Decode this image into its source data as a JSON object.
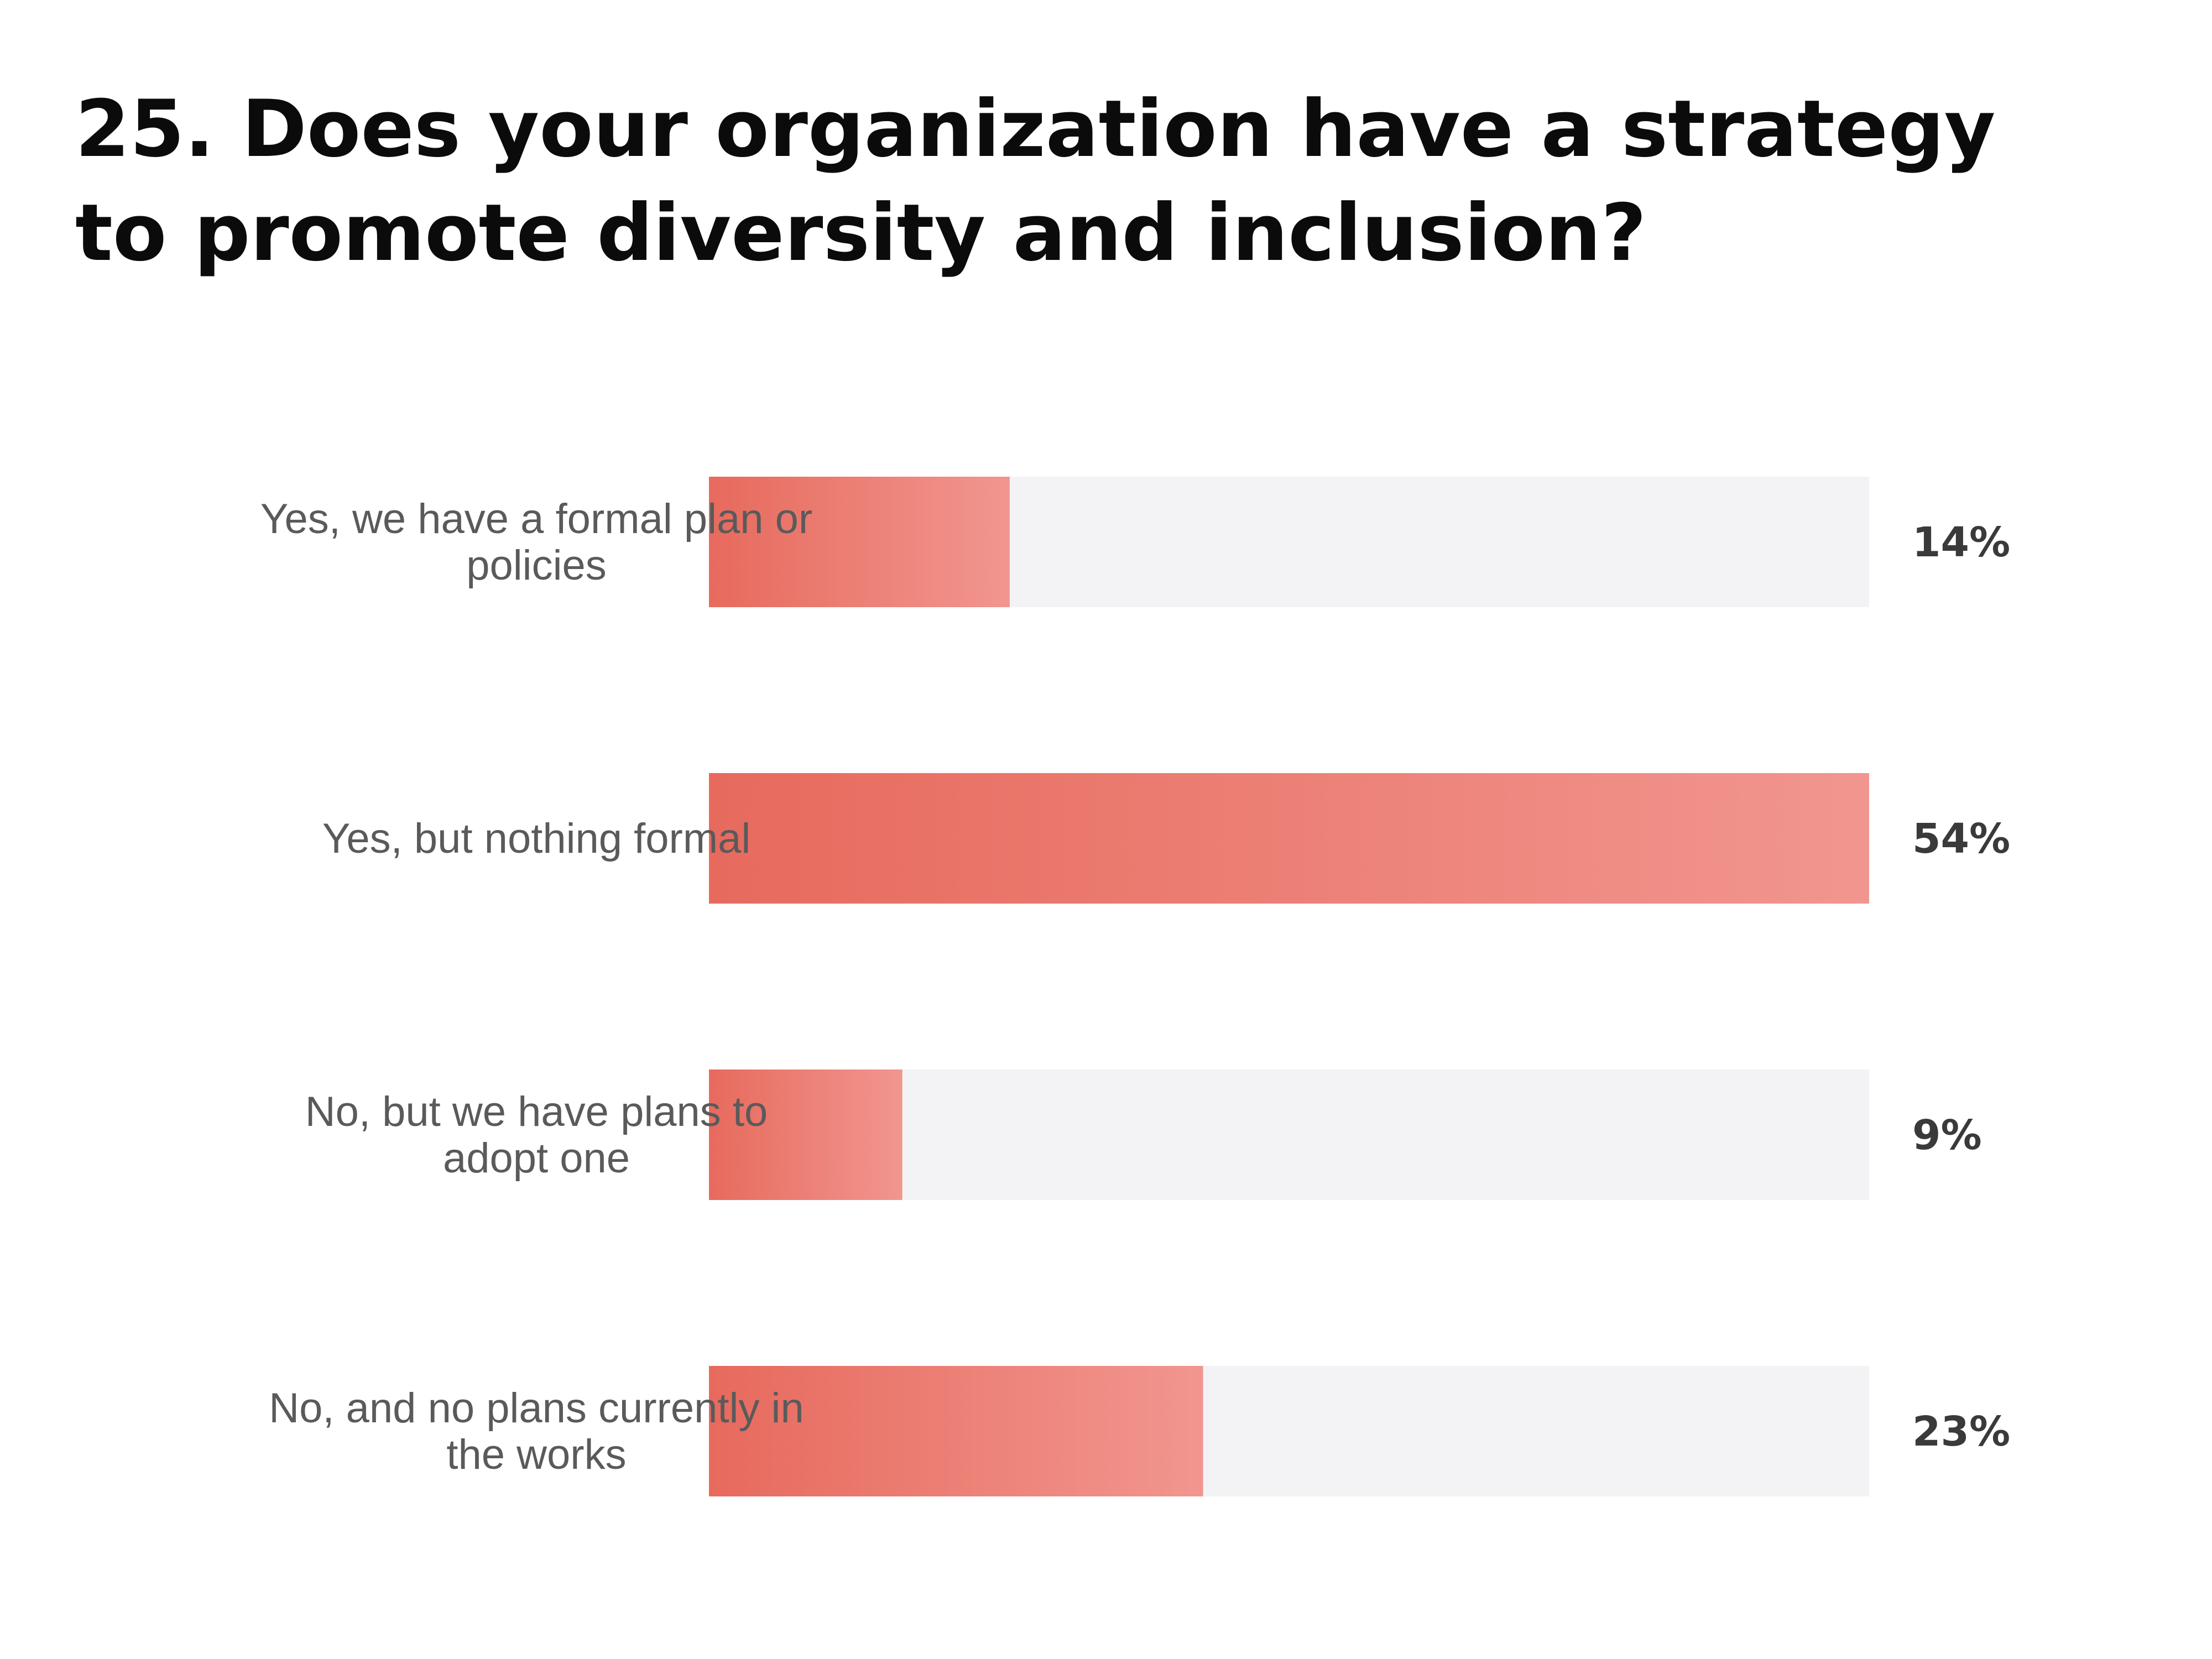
{
  "chart_data": {
    "type": "bar",
    "orientation": "horizontal",
    "title": "25. Does your organization have a strategy to promote diversity and inclusion?",
    "categories": [
      "Yes, we have a formal plan or policies",
      "Yes, but nothing formal",
      "No, but we have plans to adopt one",
      "No, and no plans currently in the works"
    ],
    "category_lines": [
      [
        "Yes, we have a formal plan or",
        "policies"
      ],
      [
        "Yes, but nothing formal"
      ],
      [
        "No, but we have plans to",
        "adopt one"
      ],
      [
        "No, and no plans currently in",
        "the works"
      ]
    ],
    "values": [
      14,
      54,
      9,
      23
    ],
    "value_labels": [
      "14%",
      "54%",
      "9%",
      "23%"
    ],
    "max_value": 54,
    "unit": "%",
    "colors": {
      "bar_start": "#e76a5d",
      "bar_end": "#f1968f",
      "track": "#f3f3f5",
      "label": "#5a5a5a",
      "value": "#3a3a3a",
      "title": "#0b0b0b"
    },
    "grid": false,
    "legend": "none"
  }
}
